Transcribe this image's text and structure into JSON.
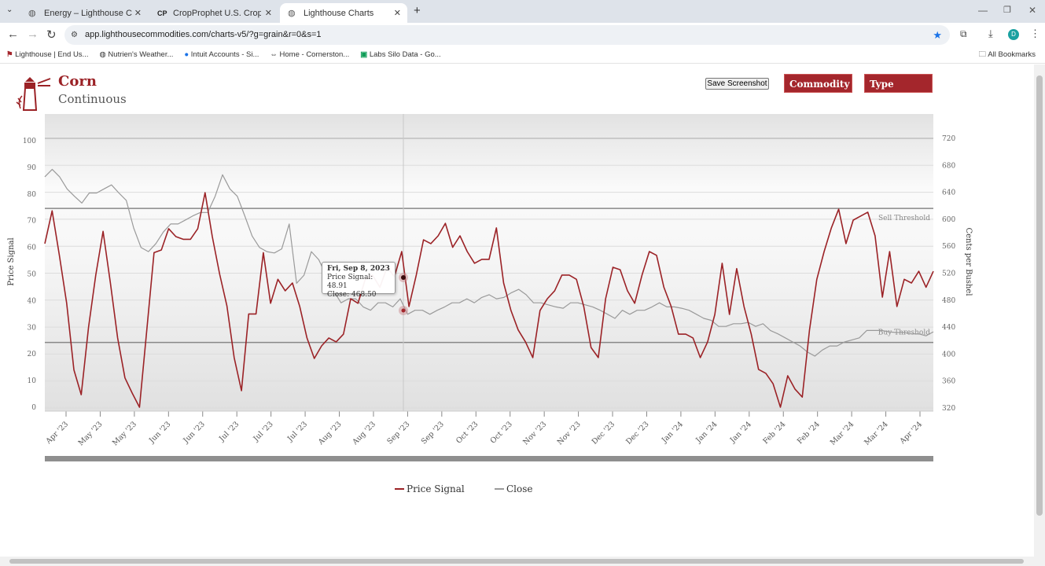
{
  "browser": {
    "tabs": [
      {
        "label": "Energy – Lighthouse Commodit",
        "icon": "globe-icon",
        "active": false
      },
      {
        "label": "CropProphet U.S. Crop Impact",
        "icon": "cp-icon",
        "active": false
      },
      {
        "label": "Lighthouse Charts",
        "icon": "globe-icon",
        "active": true
      }
    ],
    "url": "app.lighthousecommodities.com/charts-v5/?g=grain&r=0&s=1",
    "profile_initial": "D",
    "bookmarks": [
      "Lighthouse | End Us...",
      "Nutrien's Weather...",
      "Intuit Accounts - Si...",
      "Home - Cornerston...",
      "Labs Silo Data - Go..."
    ],
    "all_bookmarks": "All Bookmarks"
  },
  "header": {
    "title": "Corn",
    "subtitle": "Continuous",
    "save_label": "Save Screenshot",
    "commodity_label": "Commodity",
    "type_label": "Type"
  },
  "tooltip": {
    "date": "Fri, Sep 8, 2023",
    "signal_label": "Price Signal:",
    "signal_value": "48.91",
    "close_label": "Close:",
    "close_value": "468.50"
  },
  "colors": {
    "signal": "#9b2226",
    "close": "#9a9a9a",
    "accent": "#a4262c"
  },
  "chart_data": {
    "type": "line",
    "x_start": "2023-03-23",
    "x_end": "2024-04-20",
    "x_tick_labels": [
      "Apr '23",
      "May '23",
      "May '23",
      "Jun '23",
      "Jun '23",
      "Jul '23",
      "Jul '23",
      "Jul '23",
      "Aug '23",
      "Aug '23",
      "Sep '23",
      "Sep '23",
      "Oct '23",
      "Oct '23",
      "Nov '23",
      "Nov '23",
      "Dec '23",
      "Dec '23",
      "Jan '24",
      "Jan '24",
      "Jan '24",
      "Feb '24",
      "Feb '24",
      "Mar '24",
      "Mar '24",
      "Apr '24"
    ],
    "ylabel_left": "Price Signal",
    "ylim_left": [
      0,
      100
    ],
    "yticks_left": [
      0,
      10,
      20,
      30,
      40,
      50,
      60,
      70,
      80,
      90,
      100
    ],
    "ylabel_right": "Cents per Bushel",
    "ylim_right": [
      320,
      720
    ],
    "yticks_right": [
      320,
      360,
      400,
      440,
      480,
      520,
      560,
      600,
      640,
      680,
      720
    ],
    "thresholds": [
      {
        "label": "Sell Threshold",
        "value": 74.6
      },
      {
        "label": "Buy Threshold",
        "value": 24.3
      }
    ],
    "series": [
      {
        "name": "Price Signal",
        "axis": "left",
        "values": [
          61.4,
          73.7,
          57,
          39,
          14,
          4.7,
          30,
          49.6,
          66,
          46.6,
          26,
          11,
          5.3,
          0,
          29,
          58,
          59,
          67,
          64,
          63,
          63,
          67,
          80.5,
          64,
          50,
          38,
          18.6,
          6.2,
          35,
          35,
          58,
          39,
          48,
          43.7,
          46.6,
          37.8,
          26,
          18.3,
          23,
          26,
          24.5,
          27.4,
          40.7,
          39,
          48,
          49.6,
          45,
          52.5,
          49,
          58.4,
          37.8,
          49.6,
          62.8,
          61.4,
          64.3,
          69,
          60,
          64.3,
          58.4,
          54,
          55.5,
          55.5,
          67.3,
          46.6,
          36.3,
          29,
          24.5,
          18.6,
          36.3,
          40.7,
          43.7,
          49.6,
          49.6,
          48,
          37.8,
          22.4,
          18.6,
          40.7,
          52.5,
          51.6,
          43.7,
          39,
          49.6,
          58.4,
          57,
          45,
          37.8,
          27.4,
          27.4,
          26,
          18.6,
          24.5,
          34.8,
          54,
          34.8,
          52,
          37.8,
          27.4,
          14.2,
          12.7,
          8.8,
          0,
          11.8,
          6.8,
          3.8,
          29,
          48,
          58.4,
          67.3,
          74.3,
          61.4,
          70.2,
          71.7,
          73.2,
          64.3,
          41.3,
          58.4,
          37.8,
          48,
          46.6,
          51,
          45,
          51
        ]
      },
      {
        "name": "Close",
        "axis": "right",
        "values": [
          663,
          674,
          663,
          645,
          634,
          624,
          639,
          639,
          645,
          651,
          639,
          628,
          587,
          558,
          552,
          564,
          581,
          593,
          593,
          599,
          605,
          610,
          610,
          634,
          666,
          645,
          634,
          605,
          575,
          558,
          552,
          550,
          556,
          593,
          505,
          517,
          552,
          540,
          517,
          494,
          476,
          482,
          482,
          470,
          465,
          476,
          476,
          470,
          482,
          459,
          465,
          465,
          459,
          465,
          470,
          476,
          476,
          482,
          476,
          484,
          488,
          482,
          484,
          491,
          496,
          488,
          476,
          476,
          473,
          470,
          468,
          476,
          476,
          473,
          470,
          465,
          459,
          453,
          465,
          459,
          465,
          465,
          470,
          476,
          470,
          470,
          468,
          465,
          459,
          453,
          450,
          441,
          441,
          445,
          445,
          447,
          441,
          445,
          435,
          430,
          424,
          418,
          412,
          403,
          397,
          406,
          412,
          412,
          418,
          421,
          424,
          435,
          435,
          435,
          433,
          432,
          432,
          430,
          430,
          427,
          433
        ]
      }
    ],
    "grid": true,
    "legend": "bottom-center"
  }
}
